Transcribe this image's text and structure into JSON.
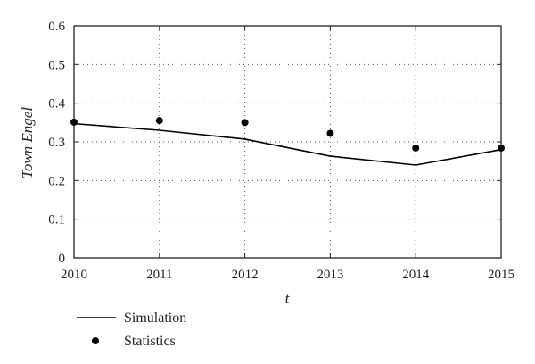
{
  "chart_data": {
    "type": "line",
    "xlabel": "t",
    "ylabel": "Town Engel",
    "xlim": [
      2010,
      2015
    ],
    "ylim": [
      0,
      0.6
    ],
    "x_ticks": [
      "2010",
      "2011",
      "2012",
      "2013",
      "2014",
      "2015"
    ],
    "y_ticks": [
      "0",
      "0.1",
      "0.2",
      "0.3",
      "0.4",
      "0.5",
      "0.6"
    ],
    "grid": true,
    "legend_position": "bottom-left",
    "x": [
      2010,
      2011,
      2012,
      2013,
      2014,
      2015
    ],
    "series": [
      {
        "name": "Simulation",
        "style": "line",
        "color": "#000000",
        "values": [
          0.347,
          0.33,
          0.307,
          0.263,
          0.24,
          0.28
        ]
      },
      {
        "name": "Statistics",
        "style": "marker",
        "color": "#000000",
        "values": [
          0.351,
          0.355,
          0.35,
          0.322,
          0.284,
          0.284
        ]
      }
    ]
  }
}
